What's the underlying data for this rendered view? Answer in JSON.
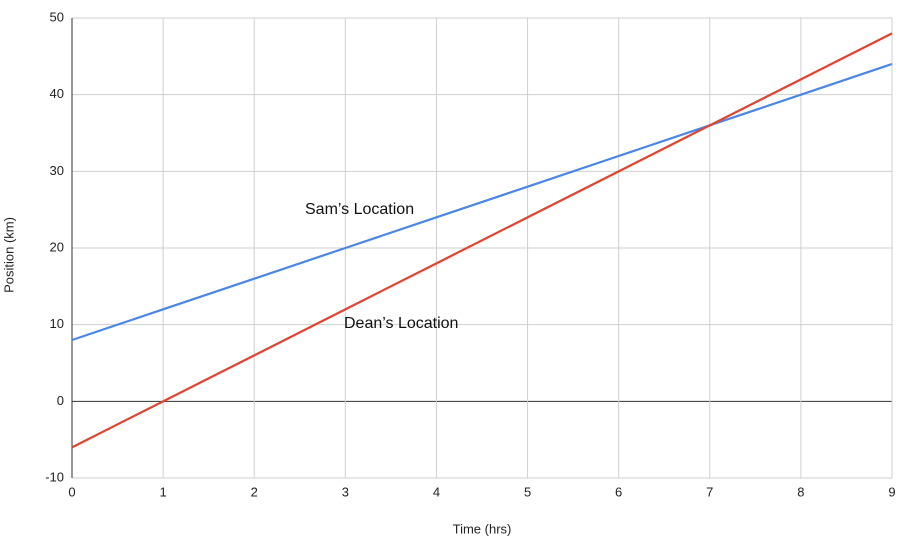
{
  "chart_data": {
    "type": "line",
    "x_label": "Time (hrs)",
    "y_label": "Position (km)",
    "x": [
      0,
      1,
      2,
      3,
      4,
      5,
      6,
      7,
      8,
      9
    ],
    "series": [
      {
        "name": "Sam’s Location",
        "color": "#4a86e8",
        "values": [
          8,
          12,
          16,
          20,
          24,
          28,
          32,
          36,
          40,
          44
        ]
      },
      {
        "name": "Dean’s Location",
        "color": "#e2432e",
        "values": [
          -6,
          0,
          6,
          12,
          18,
          24,
          30,
          36,
          42,
          48
        ]
      }
    ],
    "xlim": [
      0,
      9
    ],
    "xticks": [
      0,
      1,
      2,
      3,
      4,
      5,
      6,
      7,
      8,
      9
    ],
    "ylim": [
      -10,
      50
    ],
    "yticks": [
      -10,
      0,
      10,
      20,
      30,
      40,
      50
    ],
    "grid": true
  }
}
